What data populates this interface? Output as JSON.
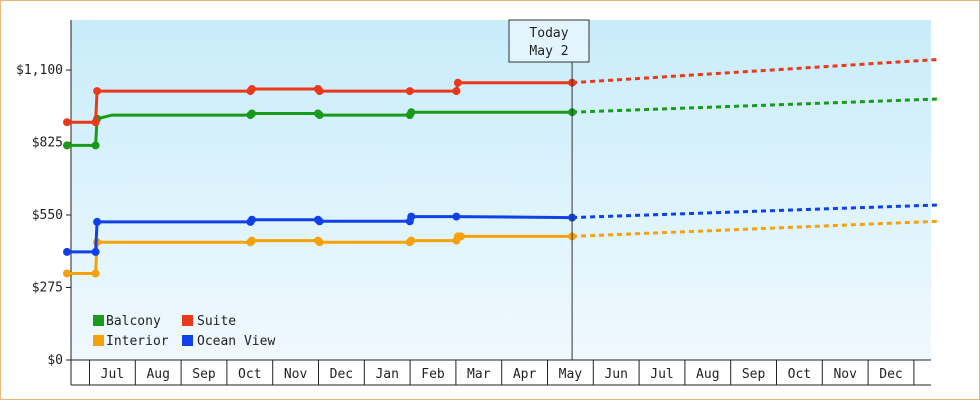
{
  "chart_data": {
    "type": "line",
    "title": "",
    "xlabel": "",
    "ylabel": "",
    "ylim": [
      0,
      1100
    ],
    "grid": false,
    "legend_position": "bottom-left",
    "y_ticks": [
      "$0",
      "$275",
      "$550",
      "$825",
      "$1,100"
    ],
    "y_tick_values": [
      0,
      275,
      550,
      825,
      1100
    ],
    "x_months": [
      "Jul",
      "Aug",
      "Sep",
      "Oct",
      "Nov",
      "Dec",
      "Jan",
      "Feb",
      "Mar",
      "Apr",
      "May",
      "Jun",
      "Jul",
      "Aug",
      "Sep",
      "Oct",
      "Nov",
      "Dec"
    ],
    "today": {
      "line1": "Today",
      "line2": "May 2",
      "date": "2024-05-02"
    },
    "series": [
      {
        "name": "Balcony",
        "color": "#1a9a1a",
        "history": [
          [
            "2023-06-01",
            814
          ],
          [
            "2023-06-20",
            814
          ],
          [
            "2023-06-21",
            915
          ],
          [
            "2023-07-01",
            929
          ],
          [
            "2023-10-01",
            929
          ],
          [
            "2023-10-02",
            935
          ],
          [
            "2023-11-15",
            935
          ],
          [
            "2023-11-16",
            929
          ],
          [
            "2024-01-15",
            929
          ],
          [
            "2024-01-16",
            940
          ],
          [
            "2024-05-02",
            940
          ]
        ],
        "forecast": [
          [
            "2024-05-02",
            940
          ],
          [
            "2024-12-31",
            990
          ]
        ],
        "markers": [
          "2023-06-01",
          "2023-06-20",
          "2023-06-21",
          "2023-10-01",
          "2023-10-02",
          "2023-11-15",
          "2023-11-16",
          "2024-01-15",
          "2024-01-16",
          "2024-05-02"
        ]
      },
      {
        "name": "Suite",
        "color": "#e8391a",
        "history": [
          [
            "2023-06-01",
            902
          ],
          [
            "2023-06-20",
            902
          ],
          [
            "2023-06-21",
            1020
          ],
          [
            "2023-10-01",
            1020
          ],
          [
            "2023-10-02",
            1028
          ],
          [
            "2023-11-15",
            1028
          ],
          [
            "2023-11-16",
            1020
          ],
          [
            "2024-01-15",
            1020
          ],
          [
            "2024-02-15",
            1020
          ],
          [
            "2024-02-16",
            1052
          ],
          [
            "2024-05-02",
            1052
          ]
        ],
        "forecast": [
          [
            "2024-05-02",
            1052
          ],
          [
            "2024-12-31",
            1140
          ]
        ],
        "markers": [
          "2023-06-01",
          "2023-06-20",
          "2023-06-21",
          "2023-10-01",
          "2023-10-02",
          "2023-11-15",
          "2023-11-16",
          "2024-01-15",
          "2024-02-15",
          "2024-02-16",
          "2024-05-02"
        ]
      },
      {
        "name": "Interior",
        "color": "#f5a20a",
        "history": [
          [
            "2023-06-01",
            328
          ],
          [
            "2023-06-20",
            328
          ],
          [
            "2023-06-21",
            447
          ],
          [
            "2023-10-01",
            447
          ],
          [
            "2023-10-02",
            453
          ],
          [
            "2023-11-15",
            453
          ],
          [
            "2023-11-16",
            447
          ],
          [
            "2024-01-15",
            447
          ],
          [
            "2024-01-16",
            453
          ],
          [
            "2024-02-15",
            453
          ],
          [
            "2024-02-16",
            469
          ],
          [
            "2024-05-02",
            469
          ]
        ],
        "forecast": [
          [
            "2024-05-02",
            469
          ],
          [
            "2024-12-31",
            526
          ]
        ],
        "markers": [
          "2023-06-01",
          "2023-06-20",
          "2023-06-21",
          "2023-10-01",
          "2023-10-02",
          "2023-11-15",
          "2023-11-16",
          "2024-01-15",
          "2024-01-16",
          "2024-02-15",
          "2024-02-16",
          "2024-02-18",
          "2024-05-02"
        ]
      },
      {
        "name": "Ocean View",
        "color": "#1040e8",
        "history": [
          [
            "2023-06-01",
            410
          ],
          [
            "2023-06-20",
            410
          ],
          [
            "2023-06-21",
            524
          ],
          [
            "2023-10-01",
            524
          ],
          [
            "2023-10-02",
            532
          ],
          [
            "2023-11-15",
            532
          ],
          [
            "2023-11-16",
            526
          ],
          [
            "2024-01-15",
            526
          ],
          [
            "2024-01-16",
            544
          ],
          [
            "2024-02-15",
            544
          ],
          [
            "2024-05-02",
            540
          ]
        ],
        "forecast": [
          [
            "2024-05-02",
            540
          ],
          [
            "2024-12-31",
            588
          ]
        ],
        "markers": [
          "2023-06-01",
          "2023-06-20",
          "2023-06-21",
          "2023-10-01",
          "2023-10-02",
          "2023-11-15",
          "2023-11-16",
          "2024-01-15",
          "2024-01-16",
          "2024-02-15",
          "2024-05-02"
        ]
      }
    ],
    "legend": [
      {
        "name": "Balcony",
        "color": "#1a9a1a"
      },
      {
        "name": "Suite",
        "color": "#e8391a"
      },
      {
        "name": "Interior",
        "color": "#f5a20a"
      },
      {
        "name": "Ocean View",
        "color": "#1040e8"
      }
    ]
  }
}
